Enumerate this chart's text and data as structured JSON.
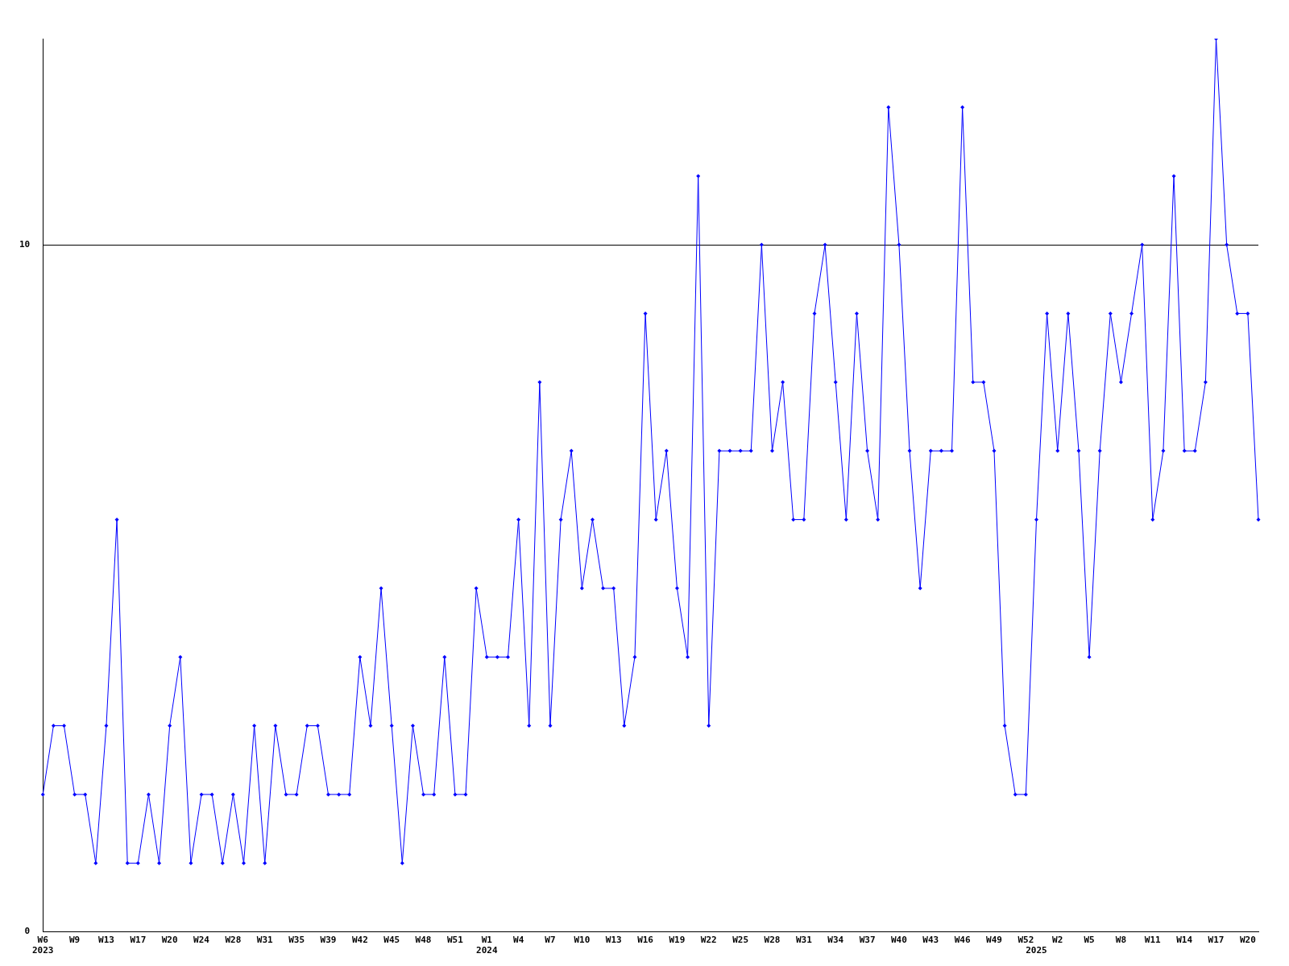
{
  "chart_data": {
    "type": "line",
    "categories": [
      "W6\n2023",
      null,
      null,
      "W9",
      null,
      null,
      "W13",
      null,
      null,
      "W17",
      null,
      null,
      "W20",
      null,
      null,
      "W24",
      null,
      null,
      "W28",
      null,
      null,
      "W31",
      null,
      null,
      "W35",
      null,
      null,
      "W39",
      null,
      null,
      "W42",
      null,
      null,
      "W45",
      null,
      null,
      "W48",
      null,
      null,
      "W51",
      null,
      null,
      "W1\n2024",
      null,
      null,
      "W4",
      null,
      null,
      "W7",
      null,
      null,
      "W10",
      null,
      null,
      "W13",
      null,
      null,
      "W16",
      null,
      null,
      "W19",
      null,
      null,
      "W22",
      null,
      null,
      "W25",
      null,
      null,
      "W28",
      null,
      null,
      "W31",
      null,
      null,
      "W34",
      null,
      null,
      "W37",
      null,
      null,
      "W40",
      null,
      null,
      "W43",
      null,
      null,
      "W46",
      null,
      null,
      "W49",
      null,
      null,
      "W52",
      "\n2025",
      null,
      "W2",
      null,
      null,
      "W5",
      null,
      null,
      "W8",
      null,
      null,
      "W11",
      null,
      null,
      "W14",
      null,
      null,
      "W17",
      null,
      null,
      "W20",
      null
    ],
    "series": [
      {
        "color": "#0000ff",
        "values": [
          2,
          3,
          3,
          2,
          2,
          1,
          3,
          6,
          1,
          1,
          2,
          1,
          3,
          4,
          1,
          2,
          2,
          1,
          2,
          1,
          3,
          1,
          3,
          2,
          2,
          3,
          3,
          2,
          2,
          2,
          4,
          3,
          5,
          3,
          1,
          3,
          2,
          2,
          4,
          2,
          2,
          5,
          4,
          4,
          4,
          6,
          3,
          8,
          3,
          6,
          7,
          5,
          6,
          5,
          5,
          3,
          4,
          9,
          6,
          7,
          5,
          4,
          11,
          3,
          7,
          7,
          7,
          7,
          10,
          7,
          8,
          6,
          6,
          9,
          10,
          8,
          6,
          9,
          7,
          6,
          12,
          10,
          7,
          5,
          7,
          7,
          7,
          12,
          8,
          8,
          7,
          3,
          2,
          2,
          6,
          9,
          7,
          9,
          7,
          4,
          7,
          9,
          8,
          9,
          10,
          6,
          7,
          11,
          7,
          7,
          8,
          13,
          10,
          9,
          9,
          6
        ]
      }
    ],
    "ylim": [
      0,
      13
    ],
    "yticks": [
      0,
      10
    ],
    "grid": "y",
    "legend": false,
    "marker": "diamond",
    "line_style": "solid"
  }
}
